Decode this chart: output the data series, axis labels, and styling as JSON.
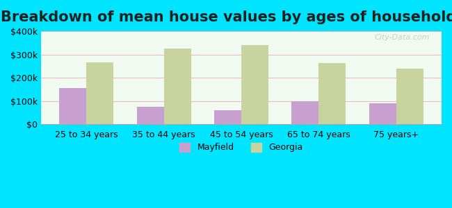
{
  "title": "Breakdown of mean house values by ages of householders",
  "categories": [
    "25 to 34 years",
    "35 to 44 years",
    "45 to 54 years",
    "65 to 74 years",
    "75 years+"
  ],
  "mayfield_values": [
    155000,
    75000,
    60000,
    100000,
    90000
  ],
  "georgia_values": [
    265000,
    325000,
    340000,
    263000,
    240000
  ],
  "mayfield_color": "#c8a0d0",
  "georgia_color": "#c8d4a0",
  "background_outer": "#00e5ff",
  "background_inner": "#f0faf0",
  "ylim": [
    0,
    400000
  ],
  "yticks": [
    0,
    100000,
    200000,
    300000,
    400000
  ],
  "ytick_labels": [
    "$0",
    "$100k",
    "$200k",
    "$300k",
    "$400k"
  ],
  "legend_labels": [
    "Mayfield",
    "Georgia"
  ],
  "title_fontsize": 15,
  "tick_fontsize": 9,
  "legend_fontsize": 9,
  "bar_width": 0.35,
  "watermark": "City-Data.com"
}
